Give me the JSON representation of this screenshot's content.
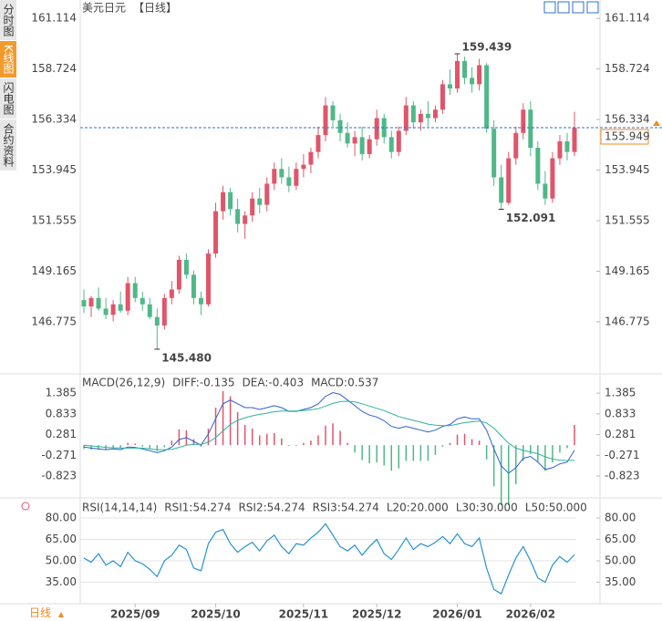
{
  "sidebar": {
    "tabs": [
      "分时图",
      "K线图",
      "闪电图",
      "合约资料"
    ],
    "active": 1
  },
  "footer": {
    "period": "日线"
  },
  "chart_data": [
    {
      "type": "candlestick",
      "title": "美元日元",
      "period": "【日线】",
      "up_color": "#e0556a",
      "down_color": "#4fb888",
      "categories": [
        null,
        null,
        null,
        null,
        null,
        null,
        null,
        "2025/09",
        null,
        null,
        null,
        null,
        null,
        null,
        null,
        null,
        null,
        null,
        "2025/10",
        null,
        null,
        null,
        null,
        null,
        null,
        null,
        null,
        null,
        null,
        null,
        "2025/11",
        null,
        null,
        null,
        null,
        null,
        null,
        null,
        null,
        null,
        "2025/12",
        null,
        null,
        null,
        null,
        null,
        null,
        null,
        null,
        null,
        null,
        "2026/01",
        null,
        null,
        null,
        null,
        null,
        null,
        null,
        null,
        null,
        "2026/02",
        null,
        null,
        null,
        null,
        null,
        null
      ],
      "open": [
        147.8,
        147.5,
        147.9,
        147.4,
        147.1,
        147.6,
        147.3,
        148.6,
        147.9,
        147.6,
        147.0,
        146.6,
        147.9,
        148.3,
        149.7,
        149.0,
        147.9,
        147.6,
        150.0,
        152.0,
        152.9,
        152.1,
        151.4,
        151.8,
        152.6,
        152.3,
        153.3,
        154.0,
        153.6,
        153.2,
        154.0,
        154.2,
        154.8,
        155.6,
        157.0,
        156.3,
        155.7,
        155.2,
        155.5,
        154.7,
        155.4,
        156.4,
        155.5,
        154.8,
        155.8,
        157.0,
        156.2,
        156.6,
        156.4,
        156.8,
        158.0,
        157.8,
        159.1,
        158.3,
        158.0,
        158.9,
        155.9,
        153.6,
        152.4,
        154.5,
        155.7,
        156.8,
        155.0,
        153.3,
        152.6,
        154.5,
        155.3,
        154.8
      ],
      "high": [
        148.3,
        148.0,
        148.4,
        147.9,
        147.8,
        148.2,
        148.9,
        148.9,
        148.2,
        147.9,
        147.4,
        148.1,
        148.7,
        149.9,
        150.0,
        149.2,
        148.2,
        150.2,
        152.4,
        153.2,
        153.1,
        152.6,
        152.0,
        152.9,
        153.1,
        153.6,
        154.3,
        154.5,
        154.1,
        154.3,
        154.7,
        155.0,
        156.0,
        157.4,
        157.2,
        156.6,
        156.2,
        155.8,
        156.0,
        155.6,
        156.8,
        156.6,
        155.8,
        156.0,
        157.4,
        157.2,
        156.8,
        157.2,
        157.0,
        158.2,
        158.7,
        159.439,
        159.3,
        158.8,
        159.2,
        159.0,
        156.3,
        154.2,
        154.8,
        156.0,
        157.1,
        157.2,
        155.3,
        153.9,
        154.8,
        155.6,
        155.7,
        156.7
      ],
      "low": [
        147.2,
        147.0,
        147.3,
        146.9,
        146.8,
        147.2,
        147.1,
        147.7,
        147.3,
        146.9,
        145.48,
        146.4,
        147.6,
        148.1,
        148.8,
        147.6,
        147.1,
        147.5,
        149.8,
        151.6,
        151.8,
        151.0,
        150.7,
        151.5,
        151.9,
        152.0,
        153.0,
        153.3,
        152.9,
        153.0,
        153.6,
        153.8,
        154.5,
        155.3,
        156.0,
        155.3,
        155.0,
        154.6,
        154.4,
        154.5,
        155.1,
        155.2,
        154.5,
        154.6,
        155.6,
        155.9,
        155.8,
        156.0,
        156.2,
        156.6,
        157.5,
        157.6,
        158.0,
        157.6,
        157.7,
        155.7,
        153.2,
        152.091,
        152.3,
        154.2,
        155.4,
        154.6,
        153.0,
        152.3,
        152.4,
        154.2,
        154.4,
        154.6
      ],
      "close": [
        147.5,
        147.9,
        147.4,
        147.1,
        147.6,
        147.3,
        148.6,
        147.9,
        147.6,
        147.0,
        146.6,
        147.9,
        148.3,
        149.7,
        149.0,
        147.9,
        147.6,
        150.0,
        152.0,
        152.9,
        152.1,
        151.4,
        151.8,
        152.6,
        152.3,
        153.3,
        154.0,
        153.6,
        153.2,
        154.0,
        154.2,
        154.8,
        155.6,
        157.0,
        156.3,
        155.7,
        155.2,
        155.5,
        154.7,
        155.4,
        156.4,
        155.5,
        154.8,
        155.8,
        157.0,
        156.2,
        156.6,
        156.4,
        156.8,
        158.0,
        157.8,
        159.1,
        158.3,
        158.0,
        158.9,
        155.9,
        153.6,
        152.4,
        154.5,
        155.7,
        156.8,
        155.0,
        153.3,
        152.6,
        154.5,
        155.3,
        154.8,
        155.949
      ],
      "annotations": [
        {
          "index": 51,
          "value": 159.439,
          "label": "159.439"
        },
        {
          "index": 57,
          "value": 152.091,
          "label": "152.091"
        },
        {
          "index": 10,
          "value": 145.48,
          "label": "145.480"
        }
      ],
      "last_price": 155.949,
      "last_color": "#2f6fd0",
      "ylim": [
        144.4,
        161.55
      ],
      "yticks": [
        161.114,
        158.724,
        156.334,
        153.945,
        151.555,
        149.165,
        146.775
      ]
    },
    {
      "type": "macd",
      "title": "MACD(26,12,9)",
      "ylim": [
        -1.38,
        1.8
      ],
      "yticks": [
        1.385,
        0.833,
        0.281,
        -0.271,
        -0.823
      ],
      "series": [
        {
          "name": "DIFF:-0.135",
          "color": "#2f5fd0",
          "values": [
            -0.05,
            -0.08,
            -0.1,
            -0.12,
            -0.1,
            -0.12,
            -0.05,
            -0.06,
            -0.1,
            -0.15,
            -0.2,
            -0.15,
            -0.05,
            0.15,
            0.2,
            0.1,
            0.0,
            0.3,
            0.7,
            1.1,
            1.2,
            1.1,
            1.0,
            1.0,
            0.95,
            1.0,
            1.05,
            1.0,
            0.9,
            0.9,
            0.95,
            1.0,
            1.1,
            1.3,
            1.4,
            1.35,
            1.2,
            1.05,
            0.9,
            0.8,
            0.75,
            0.65,
            0.5,
            0.45,
            0.5,
            0.45,
            0.4,
            0.35,
            0.4,
            0.5,
            0.55,
            0.7,
            0.75,
            0.7,
            0.7,
            0.4,
            -0.1,
            -0.55,
            -0.75,
            -0.6,
            -0.35,
            -0.3,
            -0.45,
            -0.65,
            -0.6,
            -0.5,
            -0.45,
            -0.135
          ]
        },
        {
          "name": "DEA:-0.403",
          "color": "#2fb39a",
          "values": [
            0.0,
            -0.02,
            -0.04,
            -0.06,
            -0.07,
            -0.08,
            -0.08,
            -0.08,
            -0.08,
            -0.1,
            -0.12,
            -0.12,
            -0.11,
            -0.06,
            0.0,
            0.02,
            0.02,
            0.08,
            0.2,
            0.38,
            0.55,
            0.66,
            0.73,
            0.78,
            0.82,
            0.85,
            0.89,
            0.91,
            0.91,
            0.91,
            0.92,
            0.94,
            0.97,
            1.04,
            1.11,
            1.16,
            1.17,
            1.15,
            1.1,
            1.04,
            0.98,
            0.92,
            0.84,
            0.76,
            0.71,
            0.66,
            0.61,
            0.56,
            0.53,
            0.52,
            0.52,
            0.56,
            0.6,
            0.62,
            0.64,
            0.59,
            0.45,
            0.25,
            0.05,
            -0.08,
            -0.14,
            -0.18,
            -0.23,
            -0.31,
            -0.37,
            -0.4,
            -0.41,
            -0.403
          ]
        }
      ],
      "histogram": {
        "name": "MACD:0.537",
        "color": "#3fb0d8",
        "up_color": "#e0556a",
        "down_color": "#4fb888",
        "values": [
          -0.1,
          -0.12,
          -0.12,
          -0.12,
          -0.06,
          -0.08,
          0.06,
          0.04,
          -0.04,
          -0.1,
          -0.16,
          -0.06,
          0.12,
          0.42,
          0.4,
          0.16,
          -0.04,
          0.44,
          1.0,
          1.44,
          1.3,
          0.88,
          0.54,
          0.44,
          0.26,
          0.3,
          0.32,
          0.18,
          -0.02,
          -0.02,
          0.06,
          0.12,
          0.26,
          0.52,
          0.58,
          0.38,
          0.06,
          -0.2,
          -0.4,
          -0.48,
          -0.46,
          -0.54,
          -0.68,
          -0.62,
          -0.42,
          -0.42,
          -0.42,
          -0.42,
          -0.26,
          -0.04,
          0.06,
          0.28,
          0.3,
          0.16,
          0.12,
          -0.38,
          -1.1,
          -1.6,
          -1.6,
          -1.04,
          -0.42,
          -0.24,
          -0.44,
          -0.68,
          -0.46,
          -0.2,
          -0.08,
          0.537
        ]
      }
    },
    {
      "type": "rsi",
      "title": "RSI(14,14,14)",
      "ylim": [
        21.3,
        92.8
      ],
      "yticks": [
        {
          "value": 80,
          "label": "80.00"
        },
        {
          "value": 65,
          "label": "65.00"
        },
        {
          "value": 50,
          "label": "50.00"
        },
        {
          "value": 35,
          "label": "35.00"
        }
      ],
      "series": [
        {
          "name": "RSI1:54.274",
          "color": "#2f8fdc",
          "values": [
            52,
            49,
            55,
            47,
            50,
            46,
            56,
            50,
            48,
            44,
            39,
            50,
            54,
            61,
            58,
            45,
            43,
            62,
            70,
            72,
            62,
            56,
            60,
            63,
            57,
            64,
            68,
            60,
            55,
            62,
            61,
            66,
            70,
            76,
            68,
            60,
            57,
            61,
            54,
            60,
            65,
            55,
            51,
            58,
            66,
            58,
            62,
            60,
            63,
            67,
            62,
            69,
            62,
            60,
            66,
            45,
            30,
            27,
            40,
            52,
            60,
            50,
            38,
            35,
            47,
            53,
            49,
            54.274
          ]
        },
        {
          "name": "RSI2:54.274",
          "color": "#3dbb8a",
          "values": [
            52,
            49,
            55,
            47,
            50,
            46,
            56,
            50,
            48,
            44,
            39,
            50,
            54,
            61,
            58,
            45,
            43,
            62,
            70,
            72,
            62,
            56,
            60,
            63,
            57,
            64,
            68,
            60,
            55,
            62,
            61,
            66,
            70,
            76,
            68,
            60,
            57,
            61,
            54,
            60,
            65,
            55,
            51,
            58,
            66,
            58,
            62,
            60,
            63,
            67,
            62,
            69,
            62,
            60,
            66,
            45,
            30,
            27,
            40,
            52,
            60,
            50,
            38,
            35,
            47,
            53,
            49,
            54.274
          ]
        },
        {
          "name": "RSI3:54.274",
          "color": "#27a9c9",
          "values": [
            52,
            49,
            55,
            47,
            50,
            46,
            56,
            50,
            48,
            44,
            39,
            50,
            54,
            61,
            58,
            45,
            43,
            62,
            70,
            72,
            62,
            56,
            60,
            63,
            57,
            64,
            68,
            60,
            55,
            62,
            61,
            66,
            70,
            76,
            68,
            60,
            57,
            61,
            54,
            60,
            65,
            55,
            51,
            58,
            66,
            58,
            62,
            60,
            63,
            67,
            62,
            69,
            62,
            60,
            66,
            45,
            30,
            27,
            40,
            52,
            60,
            50,
            38,
            35,
            47,
            53,
            49,
            54.274
          ]
        }
      ],
      "levels": [
        "L20:20.000",
        "L30:30.000",
        "L50:50.000"
      ],
      "level_color": "#bbbbbb"
    }
  ]
}
